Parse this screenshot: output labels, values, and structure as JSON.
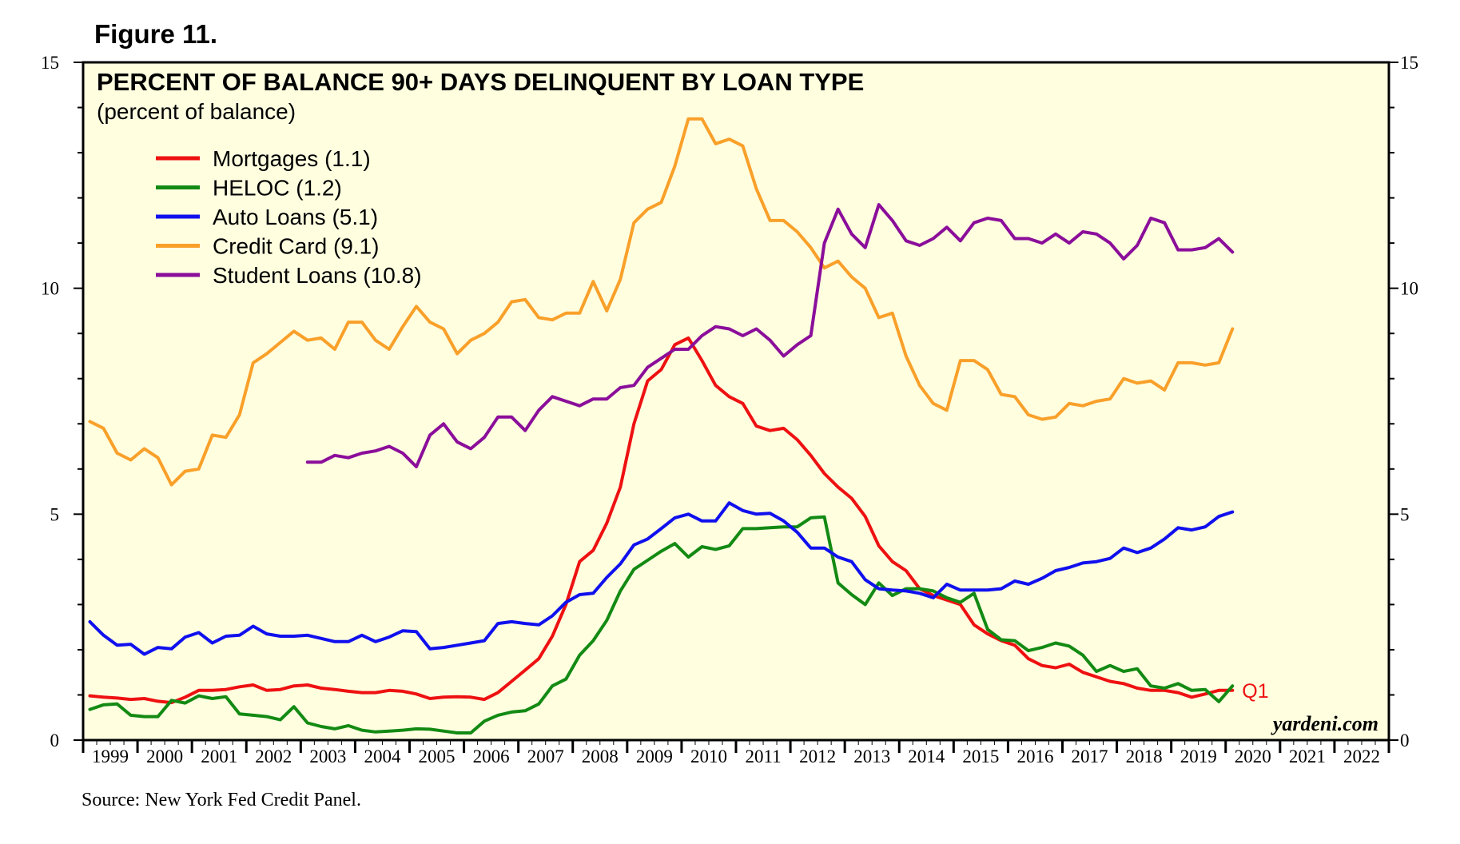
{
  "figure_label": "Figure 11.",
  "source": "Source: New York Fed Credit Panel.",
  "watermark": "yardeni.com",
  "chart_data": {
    "type": "line",
    "title": "PERCENT OF BALANCE 90+ DAYS DELINQUENT BY LOAN TYPE",
    "subtitle": "(percent of balance)",
    "xlabel": "",
    "ylabel": "",
    "x_range": [
      1999,
      2023
    ],
    "ylim": [
      0,
      15
    ],
    "y_ticks": [
      0,
      5,
      10,
      15
    ],
    "x_tick_labels": [
      "1999",
      "2000",
      "2001",
      "2002",
      "2003",
      "2004",
      "2005",
      "2006",
      "2007",
      "2008",
      "2009",
      "2010",
      "2011",
      "2012",
      "2013",
      "2014",
      "2015",
      "2016",
      "2017",
      "2018",
      "2019",
      "2020",
      "2021",
      "2022"
    ],
    "last_point_label": "Q1",
    "legend_position": "top-left",
    "series": [
      {
        "name": "Mortgages",
        "legend": "Mortgages (1.1)",
        "color": "#ee1111",
        "x": [
          1999.125,
          1999.375,
          1999.625,
          1999.875,
          2000.125,
          2000.375,
          2000.625,
          2000.875,
          2001.125,
          2001.375,
          2001.625,
          2001.875,
          2002.125,
          2002.375,
          2002.625,
          2002.875,
          2003.125,
          2003.375,
          2003.625,
          2003.875,
          2004.125,
          2004.375,
          2004.625,
          2004.875,
          2005.125,
          2005.375,
          2005.625,
          2005.875,
          2006.125,
          2006.375,
          2006.625,
          2006.875,
          2007.125,
          2007.375,
          2007.625,
          2007.875,
          2008.125,
          2008.375,
          2008.625,
          2008.875,
          2009.125,
          2009.375,
          2009.625,
          2009.875,
          2010.125,
          2010.375,
          2010.625,
          2010.875,
          2011.125,
          2011.375,
          2011.625,
          2011.875,
          2012.125,
          2012.375,
          2012.625,
          2012.875,
          2013.125,
          2013.375,
          2013.625,
          2013.875,
          2014.125,
          2014.375,
          2014.625,
          2014.875,
          2015.125,
          2015.375,
          2015.625,
          2015.875,
          2016.125,
          2016.375,
          2016.625,
          2016.875,
          2017.125,
          2017.375,
          2017.625,
          2017.875,
          2018.125,
          2018.375,
          2018.625,
          2018.875,
          2019.125,
          2019.375,
          2019.625,
          2019.875,
          2020.125
        ],
        "values": [
          0.98,
          0.95,
          0.93,
          0.9,
          0.92,
          0.86,
          0.83,
          0.95,
          1.1,
          1.1,
          1.12,
          1.18,
          1.22,
          1.1,
          1.12,
          1.2,
          1.22,
          1.15,
          1.12,
          1.08,
          1.05,
          1.05,
          1.1,
          1.08,
          1.02,
          0.92,
          0.95,
          0.96,
          0.95,
          0.9,
          1.05,
          1.3,
          1.55,
          1.8,
          2.3,
          3.0,
          3.95,
          4.2,
          4.8,
          5.6,
          7.0,
          7.95,
          8.2,
          8.75,
          8.9,
          8.4,
          7.85,
          7.6,
          7.45,
          6.95,
          6.85,
          6.9,
          6.65,
          6.3,
          5.9,
          5.6,
          5.35,
          4.95,
          4.3,
          3.95,
          3.75,
          3.35,
          3.2,
          3.1,
          3.0,
          2.55,
          2.35,
          2.2,
          2.1,
          1.8,
          1.65,
          1.6,
          1.68,
          1.5,
          1.4,
          1.3,
          1.25,
          1.15,
          1.1,
          1.1,
          1.05,
          0.95,
          1.02,
          1.1,
          1.1
        ]
      },
      {
        "name": "HELOC",
        "legend": "HELOC (1.2)",
        "color": "#138a13",
        "x": [
          1999.125,
          1999.375,
          1999.625,
          1999.875,
          2000.125,
          2000.375,
          2000.625,
          2000.875,
          2001.125,
          2001.375,
          2001.625,
          2001.875,
          2002.125,
          2002.375,
          2002.625,
          2002.875,
          2003.125,
          2003.375,
          2003.625,
          2003.875,
          2004.125,
          2004.375,
          2004.625,
          2004.875,
          2005.125,
          2005.375,
          2005.625,
          2005.875,
          2006.125,
          2006.375,
          2006.625,
          2006.875,
          2007.125,
          2007.375,
          2007.625,
          2007.875,
          2008.125,
          2008.375,
          2008.625,
          2008.875,
          2009.125,
          2009.375,
          2009.625,
          2009.875,
          2010.125,
          2010.375,
          2010.625,
          2010.875,
          2011.125,
          2011.375,
          2011.625,
          2011.875,
          2012.125,
          2012.375,
          2012.625,
          2012.875,
          2013.125,
          2013.375,
          2013.625,
          2013.875,
          2014.125,
          2014.375,
          2014.625,
          2014.875,
          2015.125,
          2015.375,
          2015.625,
          2015.875,
          2016.125,
          2016.375,
          2016.625,
          2016.875,
          2017.125,
          2017.375,
          2017.625,
          2017.875,
          2018.125,
          2018.375,
          2018.625,
          2018.875,
          2019.125,
          2019.375,
          2019.625,
          2019.875,
          2020.125
        ],
        "values": [
          0.68,
          0.78,
          0.8,
          0.55,
          0.52,
          0.52,
          0.88,
          0.82,
          0.98,
          0.92,
          0.96,
          0.58,
          0.55,
          0.52,
          0.45,
          0.74,
          0.38,
          0.3,
          0.25,
          0.32,
          0.22,
          0.18,
          0.2,
          0.22,
          0.25,
          0.24,
          0.2,
          0.16,
          0.16,
          0.42,
          0.55,
          0.62,
          0.65,
          0.8,
          1.2,
          1.35,
          1.88,
          2.2,
          2.65,
          3.3,
          3.78,
          3.98,
          4.18,
          4.35,
          4.05,
          4.28,
          4.22,
          4.3,
          4.68,
          4.68,
          4.7,
          4.72,
          4.72,
          4.92,
          4.94,
          3.48,
          3.22,
          3.0,
          3.48,
          3.2,
          3.35,
          3.35,
          3.3,
          3.15,
          3.05,
          3.25,
          2.45,
          2.22,
          2.2,
          1.98,
          2.05,
          2.15,
          2.08,
          1.88,
          1.52,
          1.65,
          1.52,
          1.58,
          1.2,
          1.15,
          1.25,
          1.1,
          1.12,
          0.85,
          1.2
        ]
      },
      {
        "name": "Auto Loans",
        "legend": "Auto Loans (5.1)",
        "color": "#1010ee",
        "x": [
          1999.125,
          1999.375,
          1999.625,
          1999.875,
          2000.125,
          2000.375,
          2000.625,
          2000.875,
          2001.125,
          2001.375,
          2001.625,
          2001.875,
          2002.125,
          2002.375,
          2002.625,
          2002.875,
          2003.125,
          2003.375,
          2003.625,
          2003.875,
          2004.125,
          2004.375,
          2004.625,
          2004.875,
          2005.125,
          2005.375,
          2005.625,
          2005.875,
          2006.125,
          2006.375,
          2006.625,
          2006.875,
          2007.125,
          2007.375,
          2007.625,
          2007.875,
          2008.125,
          2008.375,
          2008.625,
          2008.875,
          2009.125,
          2009.375,
          2009.625,
          2009.875,
          2010.125,
          2010.375,
          2010.625,
          2010.875,
          2011.125,
          2011.375,
          2011.625,
          2011.875,
          2012.125,
          2012.375,
          2012.625,
          2012.875,
          2013.125,
          2013.375,
          2013.625,
          2013.875,
          2014.125,
          2014.375,
          2014.625,
          2014.875,
          2015.125,
          2015.375,
          2015.625,
          2015.875,
          2016.125,
          2016.375,
          2016.625,
          2016.875,
          2017.125,
          2017.375,
          2017.625,
          2017.875,
          2018.125,
          2018.375,
          2018.625,
          2018.875,
          2019.125,
          2019.375,
          2019.625,
          2019.875,
          2020.125
        ],
        "values": [
          2.62,
          2.32,
          2.1,
          2.12,
          1.9,
          2.05,
          2.02,
          2.28,
          2.38,
          2.15,
          2.3,
          2.32,
          2.52,
          2.35,
          2.3,
          2.3,
          2.32,
          2.25,
          2.18,
          2.18,
          2.32,
          2.18,
          2.28,
          2.42,
          2.4,
          2.02,
          2.05,
          2.1,
          2.15,
          2.2,
          2.58,
          2.62,
          2.58,
          2.55,
          2.75,
          3.05,
          3.22,
          3.25,
          3.6,
          3.9,
          4.32,
          4.45,
          4.68,
          4.92,
          5.0,
          4.85,
          4.85,
          5.25,
          5.08,
          5.0,
          5.02,
          4.85,
          4.6,
          4.25,
          4.25,
          4.05,
          3.95,
          3.55,
          3.35,
          3.32,
          3.3,
          3.25,
          3.15,
          3.45,
          3.32,
          3.32,
          3.32,
          3.35,
          3.52,
          3.45,
          3.58,
          3.75,
          3.82,
          3.92,
          3.95,
          4.02,
          4.25,
          4.15,
          4.25,
          4.45,
          4.7,
          4.65,
          4.72,
          4.95,
          5.05
        ]
      },
      {
        "name": "Credit Card",
        "legend": "Credit Card (9.1)",
        "color": "#f9a02a",
        "x": [
          1999.125,
          1999.375,
          1999.625,
          1999.875,
          2000.125,
          2000.375,
          2000.625,
          2000.875,
          2001.125,
          2001.375,
          2001.625,
          2001.875,
          2002.125,
          2002.375,
          2002.625,
          2002.875,
          2003.125,
          2003.375,
          2003.625,
          2003.875,
          2004.125,
          2004.375,
          2004.625,
          2004.875,
          2005.125,
          2005.375,
          2005.625,
          2005.875,
          2006.125,
          2006.375,
          2006.625,
          2006.875,
          2007.125,
          2007.375,
          2007.625,
          2007.875,
          2008.125,
          2008.375,
          2008.625,
          2008.875,
          2009.125,
          2009.375,
          2009.625,
          2009.875,
          2010.125,
          2010.375,
          2010.625,
          2010.875,
          2011.125,
          2011.375,
          2011.625,
          2011.875,
          2012.125,
          2012.375,
          2012.625,
          2012.875,
          2013.125,
          2013.375,
          2013.625,
          2013.875,
          2014.125,
          2014.375,
          2014.625,
          2014.875,
          2015.125,
          2015.375,
          2015.625,
          2015.875,
          2016.125,
          2016.375,
          2016.625,
          2016.875,
          2017.125,
          2017.375,
          2017.625,
          2017.875,
          2018.125,
          2018.375,
          2018.625,
          2018.875,
          2019.125,
          2019.375,
          2019.625,
          2019.875,
          2020.125
        ],
        "values": [
          7.05,
          6.9,
          6.35,
          6.2,
          6.45,
          6.25,
          5.65,
          5.95,
          6.0,
          6.75,
          6.7,
          7.2,
          8.35,
          8.55,
          8.8,
          9.05,
          8.85,
          8.9,
          8.65,
          9.25,
          9.25,
          8.85,
          8.65,
          9.15,
          9.6,
          9.25,
          9.1,
          8.55,
          8.85,
          9.0,
          9.25,
          9.7,
          9.75,
          9.35,
          9.3,
          9.45,
          9.45,
          10.15,
          9.5,
          10.2,
          11.45,
          11.75,
          11.9,
          12.7,
          13.75,
          13.75,
          13.2,
          13.3,
          13.15,
          12.2,
          11.5,
          11.5,
          11.25,
          10.9,
          10.45,
          10.6,
          10.25,
          10.0,
          9.35,
          9.45,
          8.5,
          7.85,
          7.45,
          7.3,
          8.4,
          8.4,
          8.2,
          7.65,
          7.6,
          7.2,
          7.1,
          7.15,
          7.45,
          7.4,
          7.5,
          7.55,
          8.0,
          7.9,
          7.95,
          7.75,
          8.35,
          8.35,
          8.3,
          8.35,
          9.1
        ]
      },
      {
        "name": "Student Loans",
        "legend": "Student Loans (10.8)",
        "color": "#8b0e9a",
        "x": [
          2003.125,
          2003.375,
          2003.625,
          2003.875,
          2004.125,
          2004.375,
          2004.625,
          2004.875,
          2005.125,
          2005.375,
          2005.625,
          2005.875,
          2006.125,
          2006.375,
          2006.625,
          2006.875,
          2007.125,
          2007.375,
          2007.625,
          2007.875,
          2008.125,
          2008.375,
          2008.625,
          2008.875,
          2009.125,
          2009.375,
          2009.625,
          2009.875,
          2010.125,
          2010.375,
          2010.625,
          2010.875,
          2011.125,
          2011.375,
          2011.625,
          2011.875,
          2012.125,
          2012.375,
          2012.625,
          2012.875,
          2013.125,
          2013.375,
          2013.625,
          2013.875,
          2014.125,
          2014.375,
          2014.625,
          2014.875,
          2015.125,
          2015.375,
          2015.625,
          2015.875,
          2016.125,
          2016.375,
          2016.625,
          2016.875,
          2017.125,
          2017.375,
          2017.625,
          2017.875,
          2018.125,
          2018.375,
          2018.625,
          2018.875,
          2019.125,
          2019.375,
          2019.625,
          2019.875,
          2020.125
        ],
        "values": [
          6.15,
          6.15,
          6.3,
          6.25,
          6.35,
          6.4,
          6.5,
          6.35,
          6.05,
          6.75,
          7.0,
          6.6,
          6.45,
          6.7,
          7.15,
          7.15,
          6.85,
          7.3,
          7.6,
          7.5,
          7.4,
          7.55,
          7.55,
          7.8,
          7.85,
          8.25,
          8.45,
          8.65,
          8.65,
          8.95,
          9.15,
          9.1,
          8.95,
          9.1,
          8.85,
          8.5,
          8.75,
          8.95,
          11.0,
          11.75,
          11.2,
          10.9,
          11.85,
          11.5,
          11.05,
          10.95,
          11.1,
          11.35,
          11.05,
          11.45,
          11.55,
          11.5,
          11.1,
          11.1,
          11.0,
          11.2,
          11.0,
          11.25,
          11.2,
          11.0,
          10.65,
          10.95,
          11.55,
          11.45,
          10.85,
          10.85,
          10.9,
          11.1,
          10.8
        ]
      }
    ]
  }
}
